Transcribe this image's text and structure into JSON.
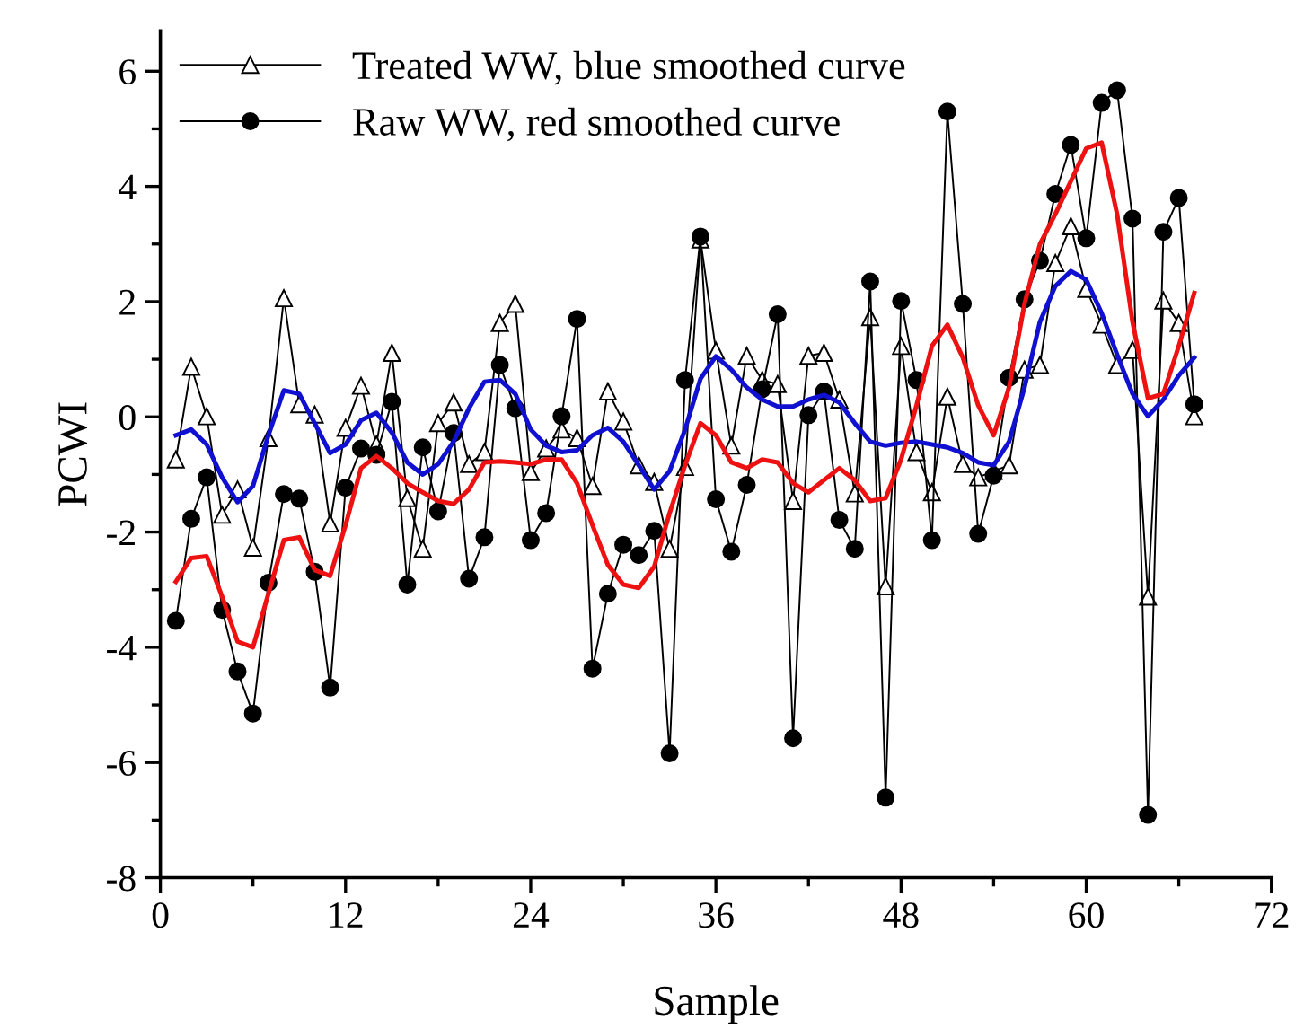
{
  "chart_data": {
    "type": "line",
    "xlabel": "Sample",
    "ylabel": "PCWI",
    "x": [
      1,
      2,
      3,
      4,
      5,
      6,
      7,
      8,
      9,
      10,
      11,
      12,
      13,
      14,
      15,
      16,
      17,
      18,
      19,
      20,
      21,
      22,
      23,
      24,
      25,
      26,
      27,
      28,
      29,
      30,
      31,
      32,
      33,
      34,
      35,
      36,
      37,
      38,
      39,
      40,
      41,
      42,
      43,
      44,
      45,
      46,
      47,
      48,
      49,
      50,
      51,
      52,
      53,
      54,
      55,
      56,
      57,
      58,
      59,
      60,
      61,
      62,
      63,
      64,
      65,
      66,
      67
    ],
    "series": [
      {
        "name": "Treated WW, blue smoothed curve",
        "color": "#000000",
        "marker": "triangle",
        "values": [
          -0.74,
          0.87,
          0.01,
          -1.7,
          -1.26,
          -2.27,
          -0.37,
          2.06,
          0.22,
          0.04,
          -1.85,
          -0.19,
          0.54,
          -0.48,
          1.11,
          -1.41,
          -2.29,
          -0.11,
          0.25,
          -0.82,
          -0.61,
          1.63,
          1.96,
          -0.96,
          -0.55,
          -0.22,
          -0.37,
          -1.2,
          0.44,
          -0.08,
          -0.84,
          -1.13,
          -2.29,
          -0.87,
          3.08,
          1.15,
          -0.5,
          1.06,
          0.64,
          0.57,
          -1.46,
          1.06,
          1.11,
          0.3,
          -1.33,
          1.73,
          -2.94,
          1.23,
          -0.61,
          -1.31,
          0.35,
          -0.82,
          -1.05,
          -0.94,
          -0.84,
          0.82,
          0.9,
          2.67,
          3.31,
          2.22,
          1.6,
          0.9,
          1.16,
          -3.12,
          2.02,
          1.63,
          0.01
        ]
      },
      {
        "name": "Raw WW, red smoothed curve",
        "color": "#000000",
        "marker": "circle",
        "values": [
          -3.54,
          -1.77,
          -1.05,
          -3.35,
          -4.42,
          -5.15,
          -2.88,
          -1.34,
          -1.42,
          -2.69,
          -4.7,
          -1.23,
          -0.55,
          -0.66,
          0.26,
          -2.91,
          -0.53,
          -1.64,
          -0.28,
          -2.81,
          -2.09,
          0.9,
          0.15,
          -2.14,
          -1.67,
          0.01,
          1.7,
          -4.37,
          -3.07,
          -2.22,
          -2.4,
          -1.98,
          -5.84,
          0.64,
          3.13,
          -1.43,
          -2.34,
          -1.18,
          0.48,
          1.78,
          -5.58,
          0.03,
          0.44,
          -1.79,
          -2.29,
          2.35,
          -6.61,
          2.01,
          0.64,
          -2.14,
          5.3,
          1.96,
          -2.03,
          -1.02,
          0.68,
          2.04,
          2.71,
          3.87,
          4.72,
          3.1,
          5.45,
          5.67,
          3.44,
          -6.91,
          3.21,
          3.8,
          0.22
        ]
      },
      {
        "color": "#1010d0",
        "marker": "none",
        "values": [
          -0.32,
          -0.22,
          -0.48,
          -1.05,
          -1.48,
          -1.2,
          -0.32,
          0.46,
          0.4,
          -0.11,
          -0.63,
          -0.48,
          -0.06,
          0.07,
          -0.27,
          -0.79,
          -1.0,
          -0.82,
          -0.43,
          0.15,
          0.61,
          0.64,
          0.4,
          -0.22,
          -0.5,
          -0.61,
          -0.58,
          -0.32,
          -0.19,
          -0.43,
          -0.84,
          -1.26,
          -0.94,
          -0.22,
          0.66,
          1.05,
          0.82,
          0.51,
          0.3,
          0.18,
          0.18,
          0.3,
          0.38,
          0.25,
          -0.11,
          -0.43,
          -0.5,
          -0.45,
          -0.43,
          -0.48,
          -0.53,
          -0.63,
          -0.79,
          -0.84,
          -0.43,
          0.51,
          1.65,
          2.27,
          2.53,
          2.38,
          1.8,
          1.08,
          0.4,
          0.01,
          0.3,
          0.72,
          1.03
        ]
      },
      {
        "color": "#ee1111",
        "marker": "none",
        "values": [
          -2.86,
          -2.45,
          -2.42,
          -3.12,
          -3.9,
          -4.0,
          -3.07,
          -2.14,
          -2.09,
          -2.66,
          -2.76,
          -1.88,
          -0.89,
          -0.68,
          -0.89,
          -1.15,
          -1.31,
          -1.46,
          -1.51,
          -1.26,
          -0.79,
          -0.77,
          -0.79,
          -0.82,
          -0.74,
          -0.74,
          -1.15,
          -1.88,
          -2.57,
          -2.91,
          -2.97,
          -2.6,
          -1.67,
          -0.84,
          -0.11,
          -0.32,
          -0.79,
          -0.89,
          -0.74,
          -0.79,
          -1.15,
          -1.31,
          -1.1,
          -0.89,
          -1.1,
          -1.46,
          -1.41,
          -0.74,
          0.2,
          1.23,
          1.6,
          1.03,
          0.2,
          -0.32,
          0.51,
          1.96,
          3.0,
          3.52,
          4.09,
          4.66,
          4.76,
          3.52,
          1.65,
          0.32,
          0.4,
          1.23,
          2.15
        ]
      }
    ],
    "xlim": [
      0,
      72
    ],
    "xticks": [
      0,
      12,
      24,
      36,
      48,
      60,
      72
    ],
    "ylim": [
      -8,
      6.7
    ],
    "yticks": [
      -8,
      -6,
      -4,
      -2,
      0,
      2,
      4,
      6
    ],
    "grid": false,
    "legend": "top left",
    "line_style": "solid"
  }
}
